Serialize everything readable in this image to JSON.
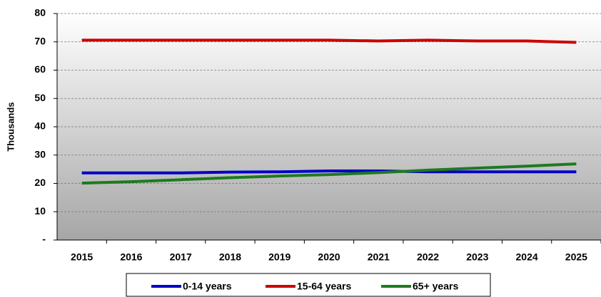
{
  "chart_data": {
    "type": "line",
    "y_label": "Thousands",
    "categories": [
      "2015",
      "2016",
      "2017",
      "2018",
      "2019",
      "2020",
      "2021",
      "2022",
      "2023",
      "2024",
      "2025"
    ],
    "series": [
      {
        "name": "0-14 years",
        "color": "#0000c8",
        "values": [
          23.7,
          23.7,
          23.7,
          24.0,
          24.1,
          24.4,
          24.4,
          24.1,
          24.1,
          24.1,
          24.1
        ]
      },
      {
        "name": "15-64 years",
        "color": "#cc0000",
        "values": [
          70.6,
          70.6,
          70.6,
          70.6,
          70.6,
          70.6,
          70.3,
          70.6,
          70.3,
          70.3,
          69.8
        ]
      },
      {
        "name": "65+ years",
        "color": "#1e7a1e",
        "values": [
          20.1,
          20.6,
          21.3,
          22.0,
          22.6,
          23.1,
          23.8,
          24.7,
          25.4,
          26.1,
          26.9
        ]
      }
    ],
    "ylim": [
      0,
      80
    ],
    "yticks": [
      {
        "value": 0,
        "label": "-"
      },
      10,
      20,
      30,
      40,
      50,
      60,
      70,
      80
    ],
    "grid": true
  }
}
